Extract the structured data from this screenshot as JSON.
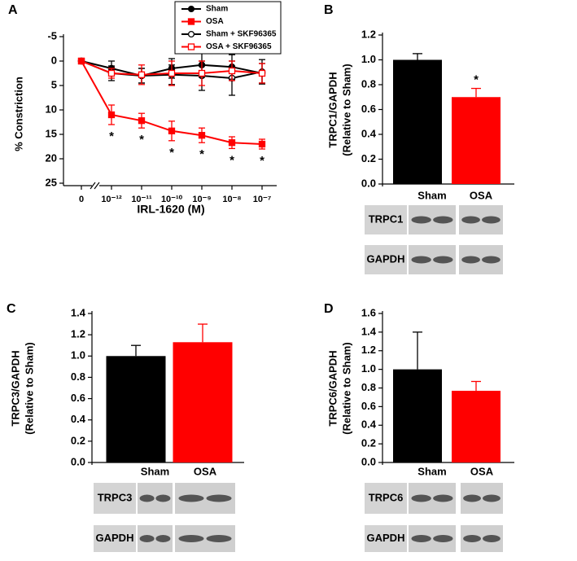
{
  "chart_data": [
    {
      "type": "line",
      "panel": "A",
      "xlabel": "IRL-1620 (M)",
      "ylabel": "% Constriction",
      "categories": [
        "0",
        "10⁻¹²",
        "10⁻¹¹",
        "10⁻¹⁰",
        "10⁻⁹",
        "10⁻⁸",
        "10⁻⁷"
      ],
      "ylim": [
        -5,
        25
      ],
      "y_reversed": true,
      "yticks": [
        -5,
        0,
        5,
        10,
        15,
        20,
        25
      ],
      "legend": "top-right",
      "series": [
        {
          "name": "Sham",
          "color": "#000000",
          "marker": "circle",
          "filled": true,
          "values": [
            0,
            1.5,
            3,
            1.5,
            0.8,
            1.2,
            2.5
          ],
          "errors": [
            0,
            1.5,
            1.5,
            2,
            2.5,
            2.5,
            2
          ]
        },
        {
          "name": "OSA",
          "color": "#ff0000",
          "marker": "square",
          "filled": true,
          "values": [
            0,
            11,
            12.2,
            14.3,
            15.2,
            16.7,
            17
          ],
          "errors": [
            0,
            2,
            1.5,
            2,
            1.5,
            1.2,
            1
          ],
          "significance": [
            null,
            "*",
            "*",
            "*",
            "*",
            "*",
            "*"
          ]
        },
        {
          "name": "Sham + SKF96365",
          "color": "#000000",
          "marker": "circle",
          "filled": false,
          "values": [
            0,
            2.5,
            3,
            2.8,
            3,
            3.5,
            2.2
          ],
          "errors": [
            0,
            1.5,
            1.5,
            2,
            3,
            3.5,
            2.5
          ]
        },
        {
          "name": "OSA + SKF96365",
          "color": "#ff0000",
          "marker": "square",
          "filled": false,
          "values": [
            0,
            2.5,
            2.8,
            2.5,
            2.5,
            2,
            2.5
          ],
          "errors": [
            0,
            1,
            2,
            2.5,
            2.5,
            2,
            2
          ]
        }
      ]
    },
    {
      "type": "bar",
      "panel": "B",
      "ylabel": [
        "TRPC1/GAPDH",
        "(Relative to Sham)"
      ],
      "categories": [
        "Sham",
        "OSA"
      ],
      "colors": [
        "#000000",
        "#ff0000"
      ],
      "values": [
        1.0,
        0.7
      ],
      "errors": [
        0.05,
        0.07
      ],
      "significance": [
        null,
        "*"
      ],
      "ylim": [
        0,
        1.2
      ],
      "yticks": [
        {
          "value": 0,
          "label": "0.0"
        },
        {
          "value": 0.2,
          "label": "0.2"
        },
        {
          "value": 0.4,
          "label": "0.4"
        },
        {
          "value": 0.6,
          "label": "0.6"
        },
        {
          "value": 0.8,
          "label": "0.8"
        },
        {
          "value": 1,
          "label": "1.0"
        },
        {
          "value": 1.2,
          "label": "1.2"
        }
      ],
      "blot": {
        "groups": [
          "Sham",
          "OSA"
        ],
        "rows": [
          "TRPC1",
          "GAPDH"
        ]
      }
    },
    {
      "type": "bar",
      "panel": "C",
      "ylabel": [
        "TRPC3/GAPDH",
        "(Relative to Sham)"
      ],
      "categories": [
        "Sham",
        "OSA"
      ],
      "colors": [
        "#000000",
        "#ff0000"
      ],
      "values": [
        1.0,
        1.13
      ],
      "errors": [
        0.1,
        0.17
      ],
      "ylim": [
        0,
        1.4
      ],
      "yticks": [
        {
          "value": 0,
          "label": "0.0"
        },
        {
          "value": 0.2,
          "label": "0.2"
        },
        {
          "value": 0.4,
          "label": "0.4"
        },
        {
          "value": 0.6,
          "label": "0.6"
        },
        {
          "value": 0.8,
          "label": "0.8"
        },
        {
          "value": 1,
          "label": "1.0"
        },
        {
          "value": 1.2,
          "label": "1.2"
        },
        {
          "value": 1.4,
          "label": "1.4"
        }
      ],
      "blot": {
        "groups": [
          "Sham",
          "OSA"
        ],
        "rows": [
          "TRPC3",
          "GAPDH"
        ]
      }
    },
    {
      "type": "bar",
      "panel": "D",
      "ylabel": [
        "TRPC6/GAPDH",
        "(Relative to Sham)"
      ],
      "categories": [
        "Sham",
        "OSA"
      ],
      "colors": [
        "#000000",
        "#ff0000"
      ],
      "values": [
        1.0,
        0.77
      ],
      "errors": [
        0.4,
        0.1
      ],
      "ylim": [
        0,
        1.6
      ],
      "yticks": [
        {
          "value": 0,
          "label": "0.0"
        },
        {
          "value": 0.2,
          "label": "0.2"
        },
        {
          "value": 0.4,
          "label": "0.4"
        },
        {
          "value": 0.6,
          "label": "0.6"
        },
        {
          "value": 0.8,
          "label": "0.8"
        },
        {
          "value": 1,
          "label": "1.0"
        },
        {
          "value": 1.2,
          "label": "1.2"
        },
        {
          "value": 1.4,
          "label": "1.4"
        },
        {
          "value": 1.6,
          "label": "1.6"
        }
      ],
      "blot": {
        "groups": [
          "Sham",
          "OSA"
        ],
        "rows": [
          "TRPC6",
          "GAPDH"
        ]
      }
    }
  ]
}
